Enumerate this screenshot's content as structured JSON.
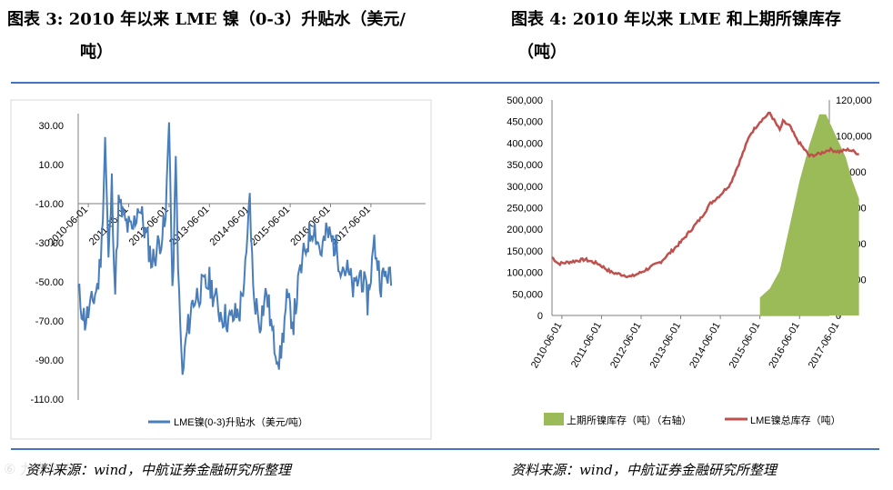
{
  "left_panel": {
    "title_line1": "图表 3:  2010 年以来 LME 镍（0-3）升贴水（美元/",
    "title_line2": "吨）",
    "source": "资料来源：wind，中航证券金融研究所整理"
  },
  "right_panel": {
    "title_line1": "图表 4:  2010 年以来 LME 和上期所镍库存",
    "title_line2": "（吨）",
    "source": "资料来源：wind，中航证券金融研究所整理"
  },
  "watermark": "⑥ 九点海券",
  "chart_data": [
    {
      "type": "line",
      "y_ticks": [
        "30.00",
        "10.00",
        "-10.00",
        "-30.00",
        "-50.00",
        "-70.00",
        "-90.00",
        "-110.00"
      ],
      "ylim": [
        -110,
        40
      ],
      "x_ticks": [
        "2010-06-01",
        "2011-06-01",
        "2012-06-01",
        "2013-06-01",
        "2014-06-01",
        "2015-06-01",
        "2016-06-01",
        "2017-06-01"
      ],
      "grid": false,
      "legend_position": "bottom",
      "series": [
        {
          "name": "LME镍(0-3)升贴水（美元/吨）",
          "color": "#4a7ebb",
          "points": [
            [
              "2010-03",
              -55
            ],
            [
              "2010-05",
              -70
            ],
            [
              "2010-07",
              -62
            ],
            [
              "2010-09",
              -50
            ],
            [
              "2010-10",
              -30
            ],
            [
              "2010-11",
              25
            ],
            [
              "2010-12",
              -40
            ],
            [
              "2011-01",
              0
            ],
            [
              "2011-02",
              -55
            ],
            [
              "2011-03",
              -10
            ],
            [
              "2011-05",
              -20
            ],
            [
              "2011-07",
              -25
            ],
            [
              "2011-09",
              -10
            ],
            [
              "2011-11",
              -25
            ],
            [
              "2012-01",
              -40
            ],
            [
              "2012-03",
              -30
            ],
            [
              "2012-05",
              -20
            ],
            [
              "2012-06",
              38
            ],
            [
              "2012-07",
              -60
            ],
            [
              "2012-08",
              10
            ],
            [
              "2012-09",
              -60
            ],
            [
              "2012-10",
              -100
            ],
            [
              "2012-11",
              -80
            ],
            [
              "2013-01",
              -60
            ],
            [
              "2013-03",
              -55
            ],
            [
              "2013-06",
              -50
            ],
            [
              "2013-09",
              -65
            ],
            [
              "2013-12",
              -70
            ],
            [
              "2014-03",
              -65
            ],
            [
              "2014-05",
              -40
            ],
            [
              "2014-06",
              -5
            ],
            [
              "2014-07",
              -55
            ],
            [
              "2014-09",
              -70
            ],
            [
              "2014-11",
              -55
            ],
            [
              "2015-01",
              -80
            ],
            [
              "2015-03",
              -90
            ],
            [
              "2015-05",
              -60
            ],
            [
              "2015-07",
              -70
            ],
            [
              "2015-09",
              -45
            ],
            [
              "2015-11",
              -30
            ],
            [
              "2016-01",
              -20
            ],
            [
              "2016-03",
              -35
            ],
            [
              "2016-05",
              -25
            ],
            [
              "2016-07",
              -30
            ],
            [
              "2016-09",
              -40
            ],
            [
              "2016-11",
              -45
            ],
            [
              "2017-01",
              -55
            ],
            [
              "2017-03",
              -45
            ],
            [
              "2017-05",
              -60
            ],
            [
              "2017-07",
              -30
            ],
            [
              "2017-09",
              -50
            ],
            [
              "2017-11",
              -45
            ],
            [
              "2017-12",
              -52
            ]
          ]
        }
      ]
    },
    {
      "type": "line+area",
      "y_left_ticks": [
        "500,000",
        "450,000",
        "400,000",
        "350,000",
        "300,000",
        "250,000",
        "200,000",
        "150,000",
        "100,000",
        "50,000",
        "0"
      ],
      "y_left_lim": [
        0,
        500000
      ],
      "y_right_ticks": [
        "120,000",
        "100,000",
        "80,000",
        "60,000",
        "40,000",
        "20,000",
        "0"
      ],
      "y_right_lim": [
        0,
        120000
      ],
      "x_ticks": [
        "2010-06-01",
        "2011-06-01",
        "2012-06-01",
        "2013-06-01",
        "2014-06-01",
        "2015-06-01",
        "2016-06-01",
        "2017-06-01"
      ],
      "grid": false,
      "legend_position": "bottom",
      "series": [
        {
          "name": "上期所镍库存（吨）（右轴）",
          "kind": "area",
          "axis": "right",
          "color": "#9bbb59",
          "points": [
            [
              "2015-06",
              10000
            ],
            [
              "2015-09",
              15000
            ],
            [
              "2015-12",
              25000
            ],
            [
              "2016-03",
              50000
            ],
            [
              "2016-06",
              75000
            ],
            [
              "2016-09",
              95000
            ],
            [
              "2016-12",
              112000
            ],
            [
              "2017-02",
              112000
            ],
            [
              "2017-05",
              100000
            ],
            [
              "2017-08",
              88000
            ],
            [
              "2017-10",
              75000
            ],
            [
              "2017-12",
              65000
            ]
          ]
        },
        {
          "name": "LME镍总库存（吨）",
          "kind": "line",
          "axis": "left",
          "color": "#c0504d",
          "points": [
            [
              "2010-03",
              135000
            ],
            [
              "2010-05",
              120000
            ],
            [
              "2010-09",
              125000
            ],
            [
              "2011-01",
              130000
            ],
            [
              "2011-05",
              120000
            ],
            [
              "2011-09",
              100000
            ],
            [
              "2011-12",
              95000
            ],
            [
              "2012-03",
              90000
            ],
            [
              "2012-06",
              100000
            ],
            [
              "2012-12",
              125000
            ],
            [
              "2013-06",
              170000
            ],
            [
              "2013-12",
              225000
            ],
            [
              "2014-03",
              260000
            ],
            [
              "2014-06",
              280000
            ],
            [
              "2014-09",
              305000
            ],
            [
              "2014-12",
              360000
            ],
            [
              "2015-03",
              420000
            ],
            [
              "2015-06",
              450000
            ],
            [
              "2015-09",
              470000
            ],
            [
              "2015-12",
              430000
            ],
            [
              "2016-01",
              450000
            ],
            [
              "2016-03",
              440000
            ],
            [
              "2016-05",
              410000
            ],
            [
              "2016-07",
              390000
            ],
            [
              "2016-09",
              370000
            ],
            [
              "2016-12",
              375000
            ],
            [
              "2017-03",
              385000
            ],
            [
              "2017-06",
              380000
            ],
            [
              "2017-09",
              385000
            ],
            [
              "2017-12",
              375000
            ]
          ]
        }
      ]
    }
  ]
}
